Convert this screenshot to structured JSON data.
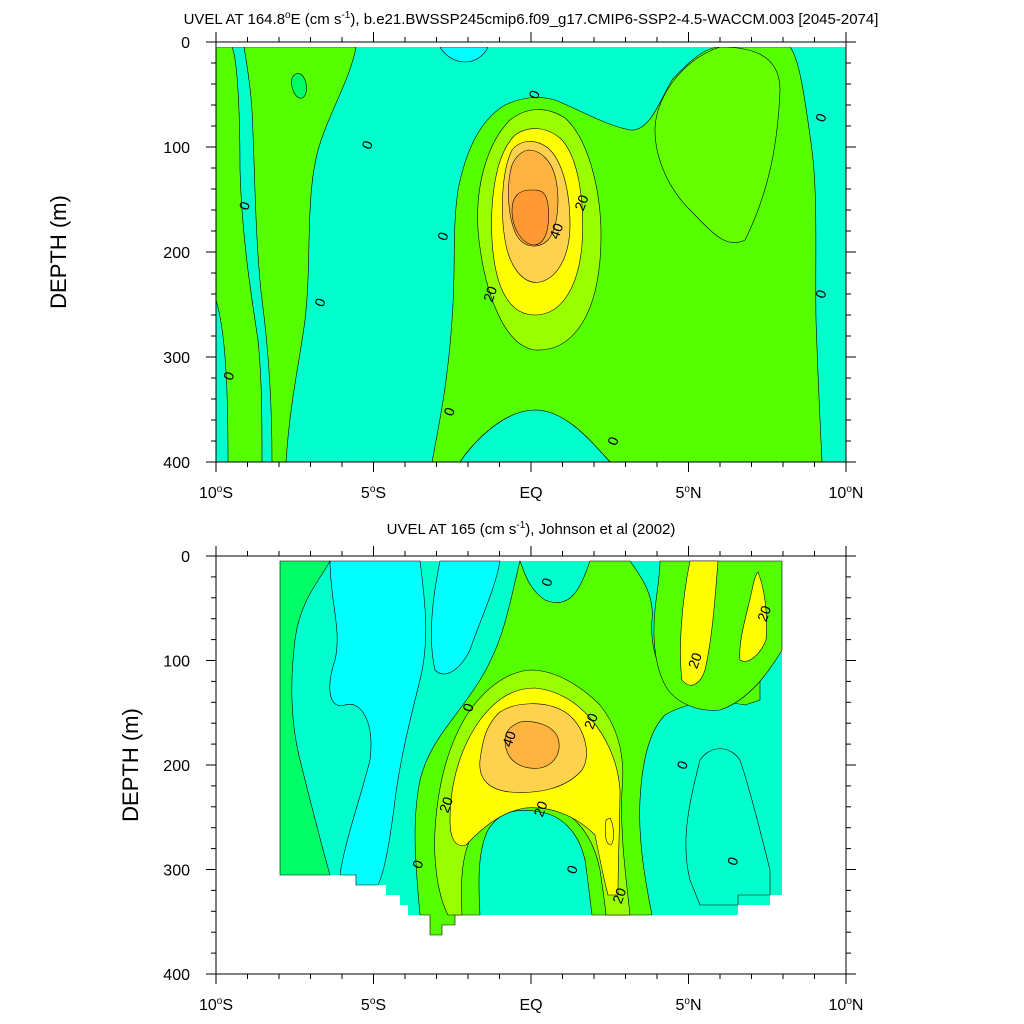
{
  "chart_data": [
    {
      "type": "contour",
      "title": "UVEL AT 164.8°E (cm s-1), b.e21.BWSSP245cmip6.f09_g17.CMIP6-SSP2-4.5-WACCM.003 [2045-2074]",
      "title_parts": {
        "pre": "UVEL AT 164.8",
        "deg": "o",
        "mid": "E (cm s",
        "sup": "-1",
        "post": "), b.e21.BWSSP245cmip6.f09_g17.CMIP6-SSP2-4.5-WACCM.003 [2045-2074]"
      },
      "xlabel": "",
      "ylabel": "DEPTH (m)",
      "xlim": [
        -10,
        10
      ],
      "ylim": [
        0,
        400
      ],
      "y_inverted": true,
      "xticks": [
        {
          "v": -10,
          "num": "10",
          "hemi": "S"
        },
        {
          "v": -5,
          "num": "5",
          "hemi": "S"
        },
        {
          "v": 0,
          "num": "EQ",
          "hemi": ""
        },
        {
          "v": 5,
          "num": "5",
          "hemi": "N"
        },
        {
          "v": 10,
          "num": "10",
          "hemi": "N"
        }
      ],
      "yticks": [
        "0",
        "100",
        "200",
        "300",
        "400"
      ],
      "contour_levels": [
        -10,
        0,
        10,
        20,
        30,
        40,
        50
      ],
      "data_extent": {
        "x": [
          -10,
          10
        ],
        "depth": [
          5,
          400
        ]
      },
      "labels": [
        {
          "text": "0",
          "x": -9.6,
          "y": 318
        },
        {
          "text": "0",
          "x": -9.1,
          "y": 156
        },
        {
          "text": "0",
          "x": -6.7,
          "y": 248
        },
        {
          "text": "0",
          "x": -5.2,
          "y": 98
        },
        {
          "text": "0",
          "x": -2.8,
          "y": 185
        },
        {
          "text": "0",
          "x": -2.6,
          "y": 352
        },
        {
          "text": "0",
          "x": 0.1,
          "y": 50
        },
        {
          "text": "0",
          "x": 2.6,
          "y": 380
        },
        {
          "text": "0",
          "x": 9.2,
          "y": 72
        },
        {
          "text": "0",
          "x": 9.2,
          "y": 240
        },
        {
          "text": "20",
          "x": -1.3,
          "y": 240
        },
        {
          "text": "20",
          "x": 1.6,
          "y": 153
        },
        {
          "text": "40",
          "x": 0.8,
          "y": 180
        }
      ]
    },
    {
      "type": "contour",
      "title": "UVEL AT 165 (cm s-1), Johnson et al (2002)",
      "title_parts": {
        "pre": "UVEL AT 165 (cm s",
        "deg": "",
        "mid": "",
        "sup": "-1",
        "post": "), Johnson et al (2002)"
      },
      "xlabel": "",
      "ylabel": "DEPTH (m)",
      "xlim": [
        -10,
        10
      ],
      "ylim": [
        0,
        400
      ],
      "y_inverted": true,
      "xticks": [
        {
          "v": -10,
          "num": "10",
          "hemi": "S"
        },
        {
          "v": -5,
          "num": "5",
          "hemi": "S"
        },
        {
          "v": 0,
          "num": "EQ",
          "hemi": ""
        },
        {
          "v": 5,
          "num": "5",
          "hemi": "N"
        },
        {
          "v": 10,
          "num": "10",
          "hemi": "N"
        }
      ],
      "yticks": [
        "0",
        "100",
        "200",
        "300",
        "400"
      ],
      "contour_levels": [
        -10,
        0,
        10,
        20,
        30,
        40
      ],
      "data_extent": {
        "x": [
          -8,
          8
        ],
        "depth": [
          5,
          365
        ]
      },
      "labels": [
        {
          "text": "0",
          "x": 0.5,
          "y": 25
        },
        {
          "text": "0",
          "x": -2.0,
          "y": 145
        },
        {
          "text": "0",
          "x": 4.8,
          "y": 200
        },
        {
          "text": "0",
          "x": -3.6,
          "y": 295
        },
        {
          "text": "0",
          "x": 1.3,
          "y": 300
        },
        {
          "text": "0",
          "x": 6.4,
          "y": 292
        },
        {
          "text": "20",
          "x": 7.4,
          "y": 55
        },
        {
          "text": "20",
          "x": 5.2,
          "y": 100
        },
        {
          "text": "20",
          "x": 1.9,
          "y": 158
        },
        {
          "text": "20",
          "x": -2.7,
          "y": 238
        },
        {
          "text": "20",
          "x": 0.3,
          "y": 242
        },
        {
          "text": "20",
          "x": 2.8,
          "y": 325
        },
        {
          "text": "40",
          "x": -0.7,
          "y": 175
        }
      ]
    }
  ]
}
